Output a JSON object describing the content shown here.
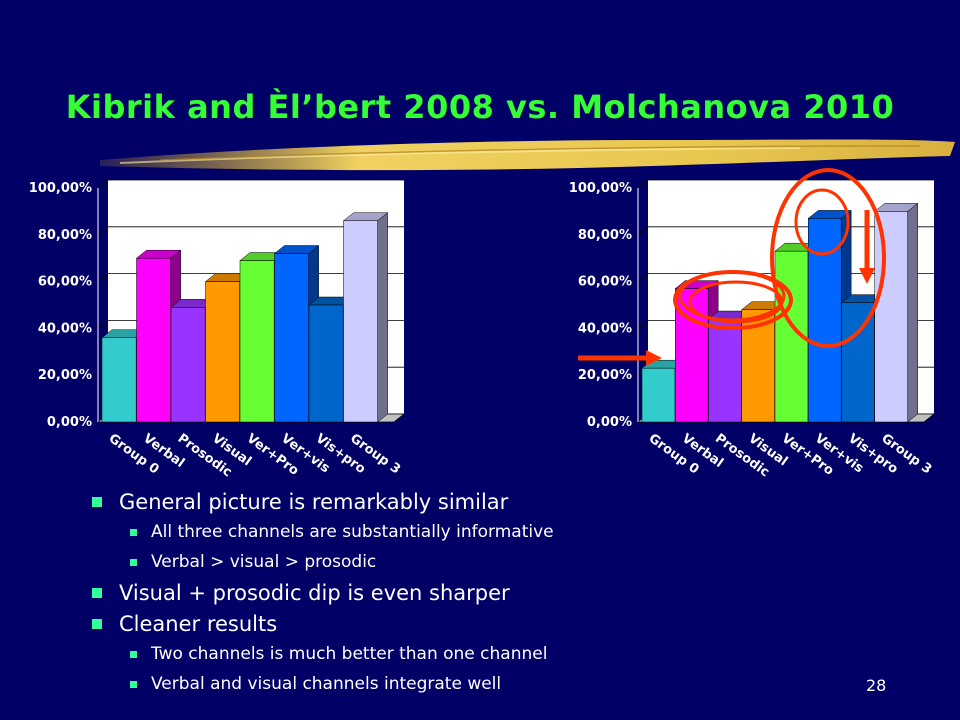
{
  "slide": {
    "title": "Kibrik and Èl’bert 2008 vs. Molchanova 2010",
    "page_number": "28",
    "bullets": [
      {
        "level": 1,
        "text": "General picture is remarkably similar"
      },
      {
        "level": 2,
        "text": "All three channels are substantially informative"
      },
      {
        "level": 2,
        "text": "Verbal > visual > prosodic"
      },
      {
        "level": 1,
        "text": "Visual + prosodic dip is even sharper"
      },
      {
        "level": 1,
        "text": "Cleaner results"
      },
      {
        "level": 2,
        "text": "Two channels is much better than one channel"
      },
      {
        "level": 2,
        "text": "Verbal and visual channels integrate well"
      }
    ]
  },
  "colors": {
    "background": "#000066",
    "title": "#33ff33",
    "bullet_marker": "#33ff99",
    "annotation_red": "#ff3300",
    "bar_colors": [
      "#33cccc",
      "#ff00ff",
      "#9933ff",
      "#ff9900",
      "#66ff33",
      "#0066ff",
      "#0066cc",
      "#ccccff"
    ]
  },
  "chart_data": [
    {
      "type": "bar",
      "categories": [
        "Group 0",
        "Verbal",
        "Prosodic",
        "Visual",
        "Ver+Pro",
        "Ver+vis",
        "Vis+pro",
        "Group 3"
      ],
      "values": [
        36,
        70,
        49,
        60,
        69,
        72,
        50,
        86
      ],
      "ylim": [
        0,
        100
      ],
      "yticks": [
        "0,00%",
        "20,00%",
        "40,00%",
        "60,00%",
        "80,00%",
        "100,00%"
      ],
      "grid": true,
      "style": "3d"
    },
    {
      "type": "bar",
      "categories": [
        "Group 0",
        "Verbal",
        "Prosodic",
        "Visual",
        "Ver+Pro",
        "Ver+vis",
        "Vis+pro",
        "Group 3"
      ],
      "values": [
        23,
        57,
        44,
        48,
        73,
        87,
        51,
        90
      ],
      "ylim": [
        0,
        100
      ],
      "yticks": [
        "0,00%",
        "20,00%",
        "40,00%",
        "60,00%",
        "80,00%",
        "100,00%"
      ],
      "grid": true,
      "style": "3d"
    }
  ]
}
